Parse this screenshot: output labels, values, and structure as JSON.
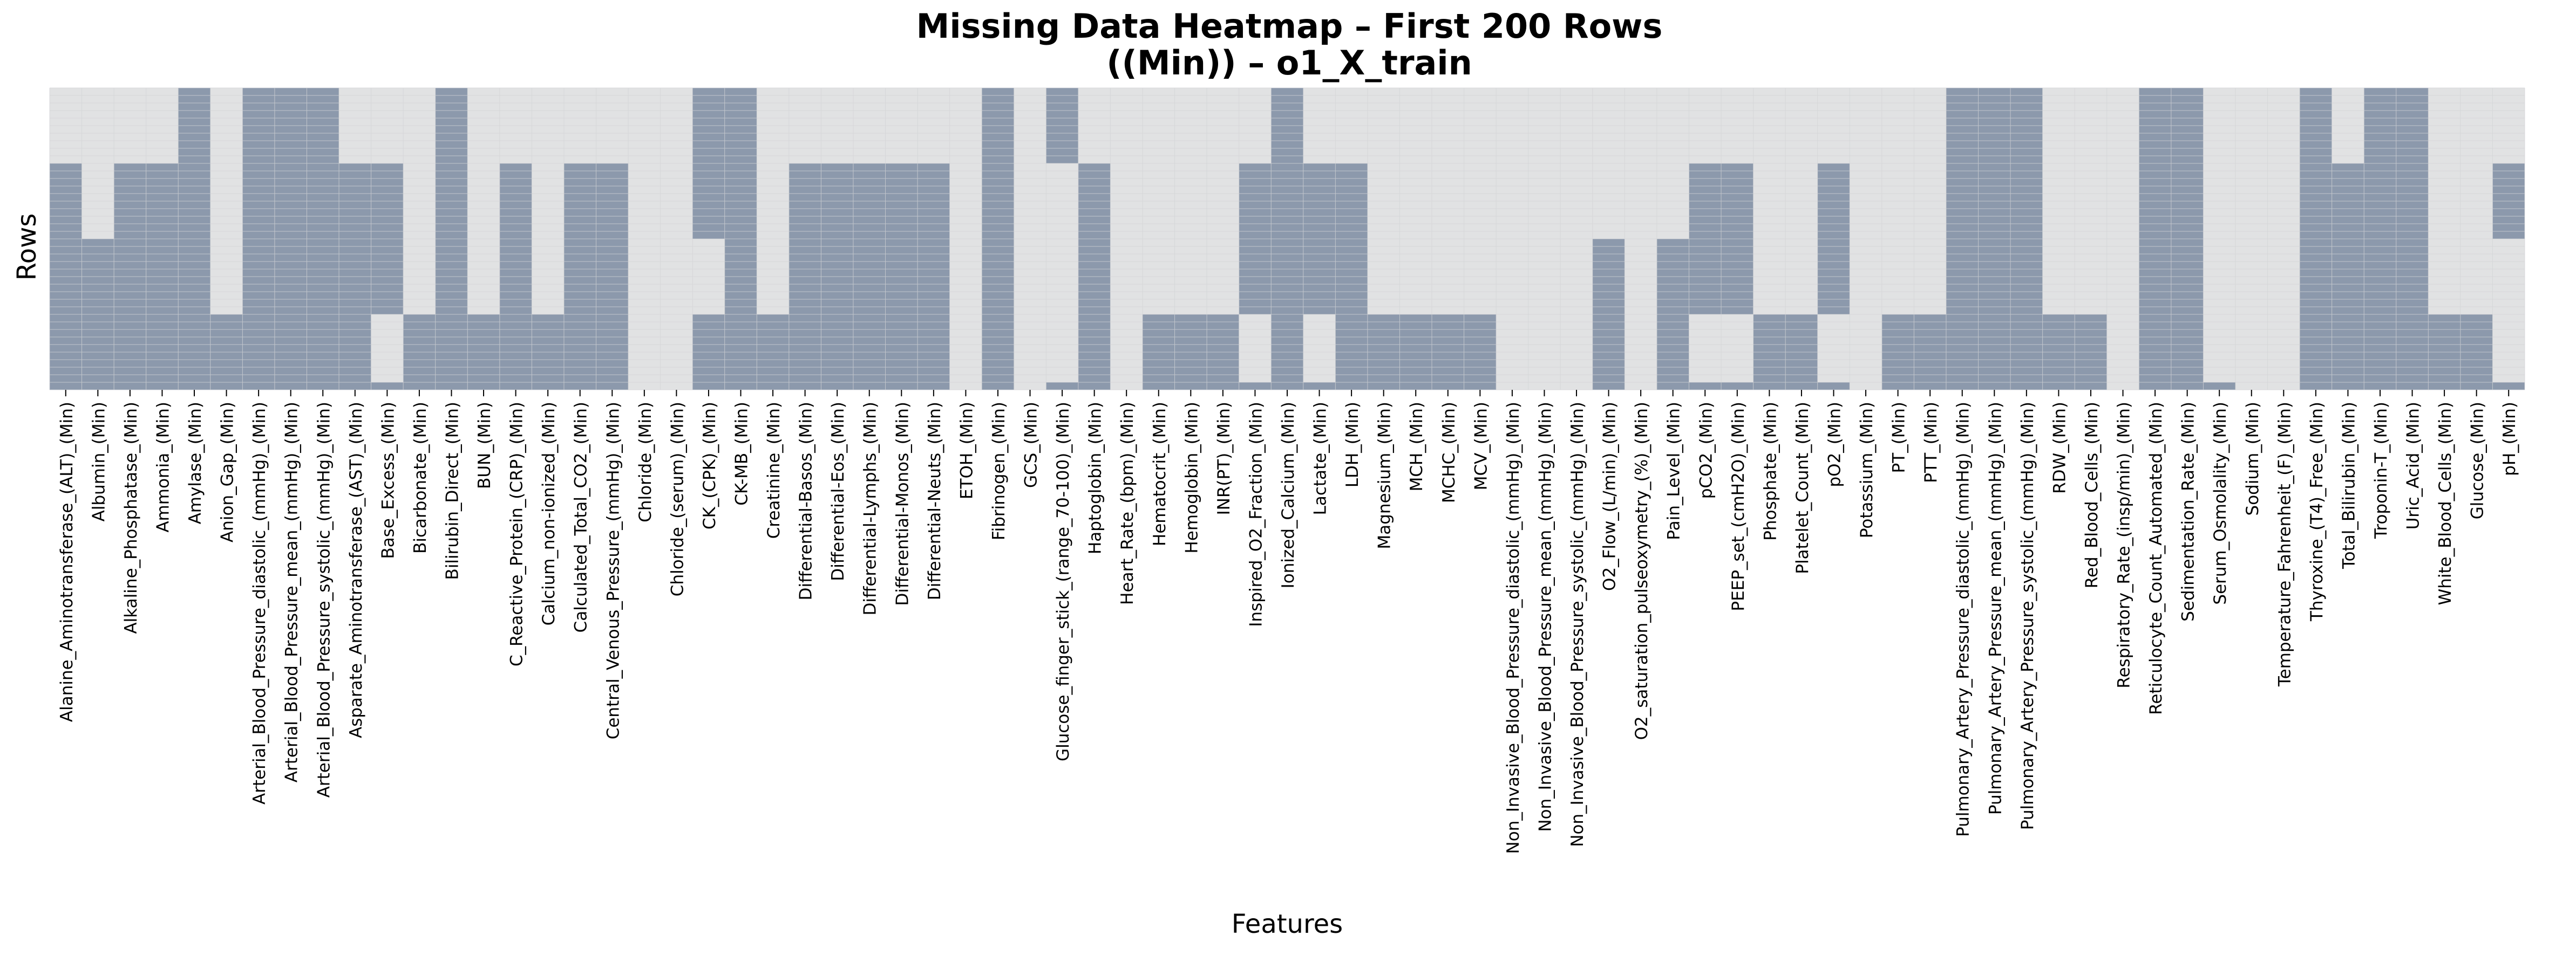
{
  "chart_data": {
    "type": "heatmap",
    "title": "Missing Data Heatmap – First 200 Rows",
    "subtitle": "((Min)) – o1_X_train",
    "xlabel": "Features",
    "ylabel": "Rows",
    "n_rows": 200,
    "grid": true,
    "colors": {
      "missing": "#8c99ac",
      "present": "#e1e2e3",
      "grid_line": "#d3d4d6"
    },
    "legend": "none",
    "missing_ranges_note": "each column lists [start_row, end_row) ranges of missing values",
    "features": [
      "Alanine_Aminotransferase_(ALT)_(Min)",
      "Albumin_(Min)",
      "Alkaline_Phosphatase_(Min)",
      "Ammonia_(Min)",
      "Amylase_(Min)",
      "Anion_Gap_(Min)",
      "Arterial_Blood_Pressure_diastolic_(mmHg)_(Min)",
      "Arterial_Blood_Pressure_mean_(mmHg)_(Min)",
      "Arterial_Blood_Pressure_systolic_(mmHg)_(Min)",
      "Asparate_Aminotransferase_(AST)_(Min)",
      "Base_Excess_(Min)",
      "Bicarbonate_(Min)",
      "Bilirubin_Direct_(Min)",
      "BUN_(Min)",
      "C_Reactive_Protein_(CRP)_(Min)",
      "Calcium_non-ionized_(Min)",
      "Calculated_Total_CO2_(Min)",
      "Central_Venous_Pressure_(mmHg)_(Min)",
      "Chloride_(Min)",
      "Chloride_(serum)_(Min)",
      "CK_(CPK)_(Min)",
      "CK-MB_(Min)",
      "Creatinine_(Min)",
      "Differential-Basos_(Min)",
      "Differential-Eos_(Min)",
      "Differential-Lymphs_(Min)",
      "Differential-Monos_(Min)",
      "Differential-Neuts_(Min)",
      "ETOH_(Min)",
      "Fibrinogen_(Min)",
      "GCS_(Min)",
      "Glucose_finger_stick_(range_70-100)_(Min)",
      "Haptoglobin_(Min)",
      "Heart_Rate_(bpm)_(Min)",
      "Hematocrit_(Min)",
      "Hemoglobin_(Min)",
      "INR(PT)_(Min)",
      "Inspired_O2_Fraction_(Min)",
      "Ionized_Calcium_(Min)",
      "Lactate_(Min)",
      "LDH_(Min)",
      "Magnesium_(Min)",
      "MCH_(Min)",
      "MCHC_(Min)",
      "MCV_(Min)",
      "Non_Invasive_Blood_Pressure_diastolic_(mmHg)_(Min)",
      "Non_Invasive_Blood_Pressure_mean_(mmHg)_(Min)",
      "Non_Invasive_Blood_Pressure_systolic_(mmHg)_(Min)",
      "O2_Flow_(L/min)_(Min)",
      "O2_saturation_pulseoxymetry_(%)_(Min)",
      "Pain_Level_(Min)",
      "pCO2_(Min)",
      "PEEP_set_(cmH2O)_(Min)",
      "Phosphate_(Min)",
      "Platelet_Count_(Min)",
      "pO2_(Min)",
      "Potassium_(Min)",
      "PT_(Min)",
      "PTT_(Min)",
      "Pulmonary_Artery_Pressure_diastolic_(mmHg)_(Min)",
      "Pulmonary_Artery_Pressure_mean_(mmHg)_(Min)",
      "Pulmonary_Artery_Pressure_systolic_(mmHg)_(Min)",
      "RDW_(Min)",
      "Red_Blood_Cells_(Min)",
      "Respiratory_Rate_(insp/min)_(Min)",
      "Reticulocyte_Count_Automated_(Min)",
      "Sedimentation_Rate_(Min)",
      "Serum_Osmolality_(Min)",
      "Sodium_(Min)",
      "Temperature_Fahrenheit_(F)_(Min)",
      "Thyroxine_(T4)_Free_(Min)",
      "Total_Bilirubin_(Min)",
      "Troponin-T_(Min)",
      "Uric_Acid_(Min)",
      "White_Blood_Cells_(Min)",
      "Glucose_(Min)",
      "pH_(Min)"
    ],
    "missing_ranges": [
      [
        [
          50,
          200
        ]
      ],
      [
        [
          100,
          200
        ]
      ],
      [
        [
          50,
          200
        ]
      ],
      [
        [
          50,
          200
        ]
      ],
      [
        [
          0,
          200
        ]
      ],
      [
        [
          150,
          200
        ]
      ],
      [
        [
          0,
          200
        ]
      ],
      [
        [
          0,
          200
        ]
      ],
      [
        [
          0,
          200
        ]
      ],
      [
        [
          50,
          200
        ]
      ],
      [
        [
          50,
          150
        ],
        [
          195,
          200
        ]
      ],
      [
        [
          150,
          200
        ]
      ],
      [
        [
          0,
          200
        ]
      ],
      [
        [
          150,
          200
        ]
      ],
      [
        [
          50,
          200
        ]
      ],
      [
        [
          150,
          200
        ]
      ],
      [
        [
          50,
          200
        ]
      ],
      [
        [
          50,
          200
        ]
      ],
      [],
      [],
      [
        [
          0,
          100
        ],
        [
          150,
          200
        ]
      ],
      [
        [
          0,
          200
        ]
      ],
      [
        [
          150,
          200
        ]
      ],
      [
        [
          50,
          200
        ]
      ],
      [
        [
          50,
          200
        ]
      ],
      [
        [
          50,
          200
        ]
      ],
      [
        [
          50,
          200
        ]
      ],
      [
        [
          50,
          200
        ]
      ],
      [],
      [
        [
          0,
          200
        ]
      ],
      [],
      [
        [
          0,
          50
        ],
        [
          195,
          200
        ]
      ],
      [
        [
          50,
          200
        ]
      ],
      [],
      [
        [
          150,
          200
        ]
      ],
      [
        [
          150,
          200
        ]
      ],
      [
        [
          150,
          200
        ]
      ],
      [
        [
          50,
          150
        ],
        [
          195,
          200
        ]
      ],
      [
        [
          0,
          200
        ]
      ],
      [
        [
          50,
          150
        ],
        [
          195,
          200
        ]
      ],
      [
        [
          50,
          200
        ]
      ],
      [
        [
          150,
          200
        ]
      ],
      [
        [
          150,
          200
        ]
      ],
      [
        [
          150,
          200
        ]
      ],
      [
        [
          150,
          200
        ]
      ],
      [],
      [],
      [],
      [
        [
          100,
          200
        ]
      ],
      [],
      [
        [
          100,
          200
        ]
      ],
      [
        [
          50,
          150
        ],
        [
          195,
          200
        ]
      ],
      [
        [
          50,
          150
        ],
        [
          195,
          200
        ]
      ],
      [
        [
          150,
          200
        ]
      ],
      [
        [
          150,
          200
        ]
      ],
      [
        [
          50,
          150
        ],
        [
          195,
          200
        ]
      ],
      [],
      [
        [
          150,
          200
        ]
      ],
      [
        [
          150,
          200
        ]
      ],
      [
        [
          0,
          200
        ]
      ],
      [
        [
          0,
          200
        ]
      ],
      [
        [
          0,
          200
        ]
      ],
      [
        [
          150,
          200
        ]
      ],
      [
        [
          150,
          200
        ]
      ],
      [],
      [
        [
          0,
          200
        ]
      ],
      [
        [
          0,
          200
        ]
      ],
      [
        [
          195,
          200
        ]
      ],
      [],
      [],
      [
        [
          0,
          200
        ]
      ],
      [
        [
          50,
          200
        ]
      ],
      [
        [
          0,
          200
        ]
      ],
      [
        [
          0,
          200
        ]
      ],
      [
        [
          150,
          200
        ]
      ],
      [
        [
          150,
          200
        ]
      ],
      [
        [
          50,
          100
        ],
        [
          195,
          200
        ]
      ]
    ]
  }
}
